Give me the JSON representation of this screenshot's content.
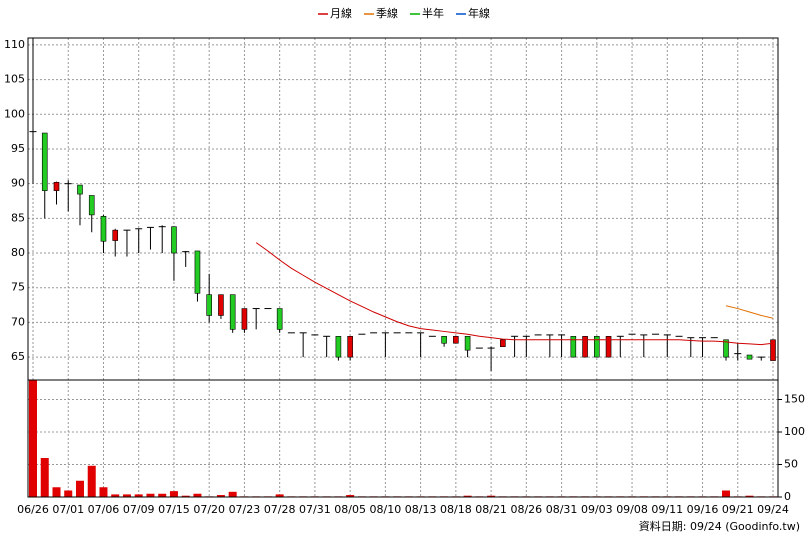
{
  "chart_data": {
    "type": "candlestick",
    "legend": [
      {
        "name": "月線",
        "color": "#d00000"
      },
      {
        "name": "季線",
        "color": "#e07000"
      },
      {
        "name": "半年",
        "color": "#00b000"
      },
      {
        "name": "年線",
        "color": "#0050d0"
      }
    ],
    "categories": [
      "06/26",
      null,
      null,
      "07/01",
      null,
      null,
      "07/06",
      null,
      null,
      "07/09",
      null,
      null,
      "07/15",
      null,
      null,
      "07/20",
      null,
      null,
      "07/23",
      null,
      null,
      "07/28",
      null,
      null,
      "07/31",
      null,
      null,
      "08/05",
      null,
      null,
      "08/10",
      null,
      null,
      "08/13",
      null,
      null,
      "08/18",
      null,
      null,
      "08/21",
      null,
      null,
      "08/26",
      null,
      null,
      "08/31",
      null,
      null,
      "09/03",
      null,
      null,
      "09/08",
      null,
      null,
      "09/11",
      null,
      null,
      "09/16",
      null,
      null,
      "09/21",
      null,
      null,
      "09/24"
    ],
    "open": [
      97.5,
      97.3,
      89,
      90,
      89.8,
      88.3,
      85.3,
      81.8,
      83.3,
      83.5,
      83.7,
      83.8,
      83.8,
      80.2,
      80.3,
      74,
      71,
      74,
      69,
      72,
      72,
      72,
      68.5,
      68.5,
      68.2,
      68,
      68,
      65,
      68.3,
      68.5,
      68.5,
      68.5,
      68.5,
      68.5,
      68,
      68,
      67,
      68,
      66.3,
      66.3,
      66.5,
      68,
      68,
      68.2,
      68.2,
      68.2,
      68,
      65,
      68,
      65,
      68,
      68.3,
      68.2,
      68.3,
      68.2,
      68,
      67.8,
      67.8,
      67.8,
      67.5,
      65.5,
      65.3,
      65,
      64.5
    ],
    "high": [
      111,
      97.3,
      90.3,
      90.5,
      89.8,
      88.3,
      85.5,
      83.5,
      83.3,
      83.5,
      83.7,
      84,
      83.8,
      80.3,
      80.3,
      77,
      74,
      74,
      72,
      72,
      72,
      72,
      68.5,
      68.5,
      68.2,
      68,
      68,
      68,
      68.3,
      68.5,
      68.5,
      68.5,
      68.5,
      68.5,
      68,
      68,
      68,
      68,
      66.3,
      66.5,
      67.5,
      68,
      68,
      68.2,
      68.2,
      68.2,
      68,
      68,
      68,
      68,
      68,
      68.3,
      68.2,
      68.3,
      68.2,
      68,
      67.8,
      67.8,
      67.8,
      67.5,
      67,
      65.3,
      65,
      67.5
    ],
    "low": [
      90,
      85,
      87,
      86,
      84,
      83,
      80,
      79.5,
      79.5,
      80,
      80.5,
      80,
      76,
      78,
      73,
      70,
      70.5,
      68.5,
      68.5,
      69,
      72,
      68.5,
      68.5,
      65,
      68.2,
      65,
      64.5,
      64.5,
      68.3,
      68.5,
      65,
      68.5,
      68.5,
      65,
      68,
      66.5,
      67,
      65,
      66.3,
      63,
      66.5,
      65,
      65,
      68.2,
      65,
      65,
      65,
      65,
      65,
      65,
      65,
      68.3,
      65,
      68.3,
      65,
      68,
      65,
      65,
      67.8,
      64.5,
      64.5,
      64.7,
      64.5,
      64.5
    ],
    "close": [
      97.5,
      89,
      90.2,
      90,
      88.5,
      85.5,
      81.7,
      83.3,
      83.3,
      83.5,
      83.7,
      83.8,
      80,
      80.2,
      74.2,
      71,
      74,
      69,
      72,
      72,
      72,
      69,
      68.5,
      68.5,
      68.2,
      68,
      65,
      68,
      68.3,
      68.5,
      68.5,
      68.5,
      68.5,
      68.5,
      68,
      67,
      68,
      66,
      66.3,
      66.3,
      67.5,
      68,
      68,
      68.2,
      68.2,
      68.2,
      65,
      68,
      65,
      68,
      68,
      68.3,
      68.2,
      68.3,
      68.2,
      68,
      67.8,
      67.8,
      67.8,
      65,
      65.5,
      64.7,
      65,
      67.5
    ],
    "volume": [
      180,
      60,
      15,
      10,
      25,
      48,
      15,
      4,
      4,
      4,
      5,
      5,
      9,
      2,
      5,
      1,
      3,
      8,
      1,
      1,
      1,
      4,
      1,
      1,
      1,
      1,
      1,
      3,
      1,
      1,
      1,
      1,
      1,
      1,
      1,
      1,
      1,
      2,
      1,
      2,
      1,
      1,
      1,
      1,
      1,
      1,
      1,
      1,
      1,
      1,
      1,
      1,
      1,
      1,
      1,
      1,
      1,
      1,
      1,
      10,
      1,
      2,
      1,
      1
    ],
    "ma": [
      [
        null,
        null,
        null,
        null,
        null,
        null,
        null,
        null,
        null,
        null,
        null,
        null,
        null,
        null,
        null,
        null,
        null,
        null,
        null,
        81.5,
        80.3,
        79,
        77.8,
        76.8,
        75.8,
        74.9,
        74,
        73.1,
        72.3,
        71.5,
        70.8,
        70.1,
        69.5,
        69.1,
        68.9,
        68.7,
        68.5,
        68.3,
        68,
        67.8,
        67.6,
        67.5,
        67.5,
        67.5,
        67.5,
        67.5,
        67.5,
        67.5,
        67.5,
        67.5,
        67.5,
        67.5,
        67.5,
        67.5,
        67.5,
        67.5,
        67.4,
        67.3,
        67.3,
        67.2,
        67,
        66.9,
        66.8,
        67
      ],
      [
        null,
        null,
        null,
        null,
        null,
        null,
        null,
        null,
        null,
        null,
        null,
        null,
        null,
        null,
        null,
        null,
        null,
        null,
        null,
        null,
        null,
        null,
        null,
        null,
        null,
        null,
        null,
        null,
        null,
        null,
        null,
        null,
        null,
        null,
        null,
        null,
        null,
        null,
        null,
        null,
        null,
        null,
        null,
        null,
        null,
        null,
        null,
        null,
        null,
        null,
        null,
        null,
        null,
        null,
        null,
        null,
        null,
        null,
        null,
        72.4,
        72,
        71.5,
        71,
        70.6
      ]
    ],
    "up_color": "#e00000",
    "down_color": "#22cc22",
    "volume_color": "#e00000",
    "ylim": [
      61.7,
      111
    ],
    "yticks": [
      65,
      70,
      75,
      80,
      85,
      90,
      95,
      100,
      105,
      110
    ],
    "y2lim": [
      0,
      180
    ],
    "y2ticks": [
      0,
      50,
      100,
      150
    ],
    "grid": true,
    "footnote": "資料日期: 09/24  (Goodinfo.tw)"
  }
}
